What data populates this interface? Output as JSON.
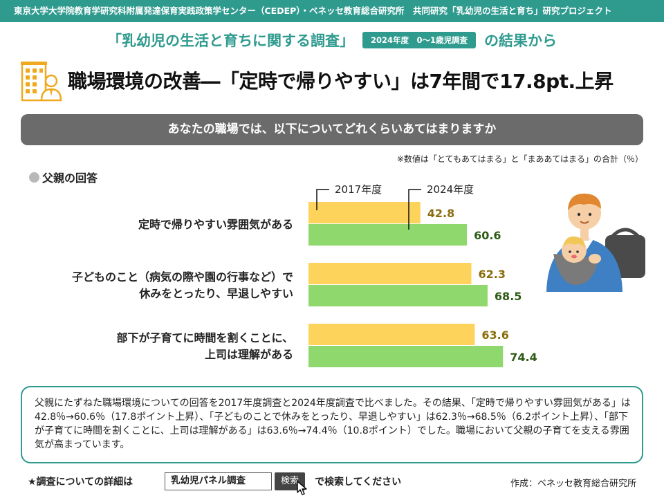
{
  "header": {
    "top_bar": "東京大学大学院教育学研究科附属発達保育実践政策学センター（CEDEP）・ベネッセ教育総合研究所　共同研究「乳幼児の生活と育ち」研究プロジェクト",
    "subtitle_main": "「乳幼児の生活と育ちに関する調査」",
    "year_badge": "2024年度　0～1歳児調査",
    "subtitle_tail": "の結果から",
    "title": "職場環境の改善―「定時で帰りやすい」は7年間で17.8pt.上昇"
  },
  "question": "あなたの職場では、以下についてどれくらいあてはまりますか",
  "note": "※数値は「とてもあてはまる」と「まああてはまる」の合計（％）",
  "respondent": "父親の回答",
  "chart_data": {
    "type": "bar",
    "orientation": "horizontal",
    "categories": [
      [
        "定時で帰りやすい雰囲気がある"
      ],
      [
        "子どものこと（病気の際や園の行事など）で",
        "休みをとったり、早退しやすい"
      ],
      [
        "部下が子育てに時間を割くことに、",
        "上司は理解がある"
      ]
    ],
    "series": [
      {
        "name": "2017年度",
        "values": [
          42.8,
          62.3,
          63.6
        ],
        "color": "#fdd35c",
        "label_color": "#8a6d0b"
      },
      {
        "name": "2024年度",
        "values": [
          60.6,
          68.5,
          74.4
        ],
        "color": "#8fd86e",
        "label_color": "#2e5b17"
      }
    ],
    "xlim": [
      0,
      100
    ],
    "grid": false,
    "legend": "callouts above first group"
  },
  "summary": "父親にたずねた職場環境についての回答を2017年度調査と2024年度調査で比べました。その結果、「定時で帰りやすい雰囲気がある」は42.8％→60.6％（17.8ポイント上昇）、「子どものことで休みをとったり、早退しやすい」は62.3％→68.5％（6.2ポイント上昇）、「部下が子育てに時間を割くことに、上司は理解がある」は63.6％→74.4％（10.8ポイント）でした。職場において父親の子育てを支える雰囲気が高まっています。",
  "footer": {
    "lead": "★調査についての詳細は",
    "search_value": "乳幼児パネル調査",
    "search_button": "検索",
    "tail": "で検索してください",
    "credit": "作成：ベネッセ教育総合研究所"
  },
  "icons": {
    "title_icon": "office-worker-icon",
    "cursor": "cursor-icon",
    "illustration": "father-holding-baby"
  },
  "colors": {
    "brand": "#2f9a8e",
    "question_bar": "#6b6b6b"
  }
}
